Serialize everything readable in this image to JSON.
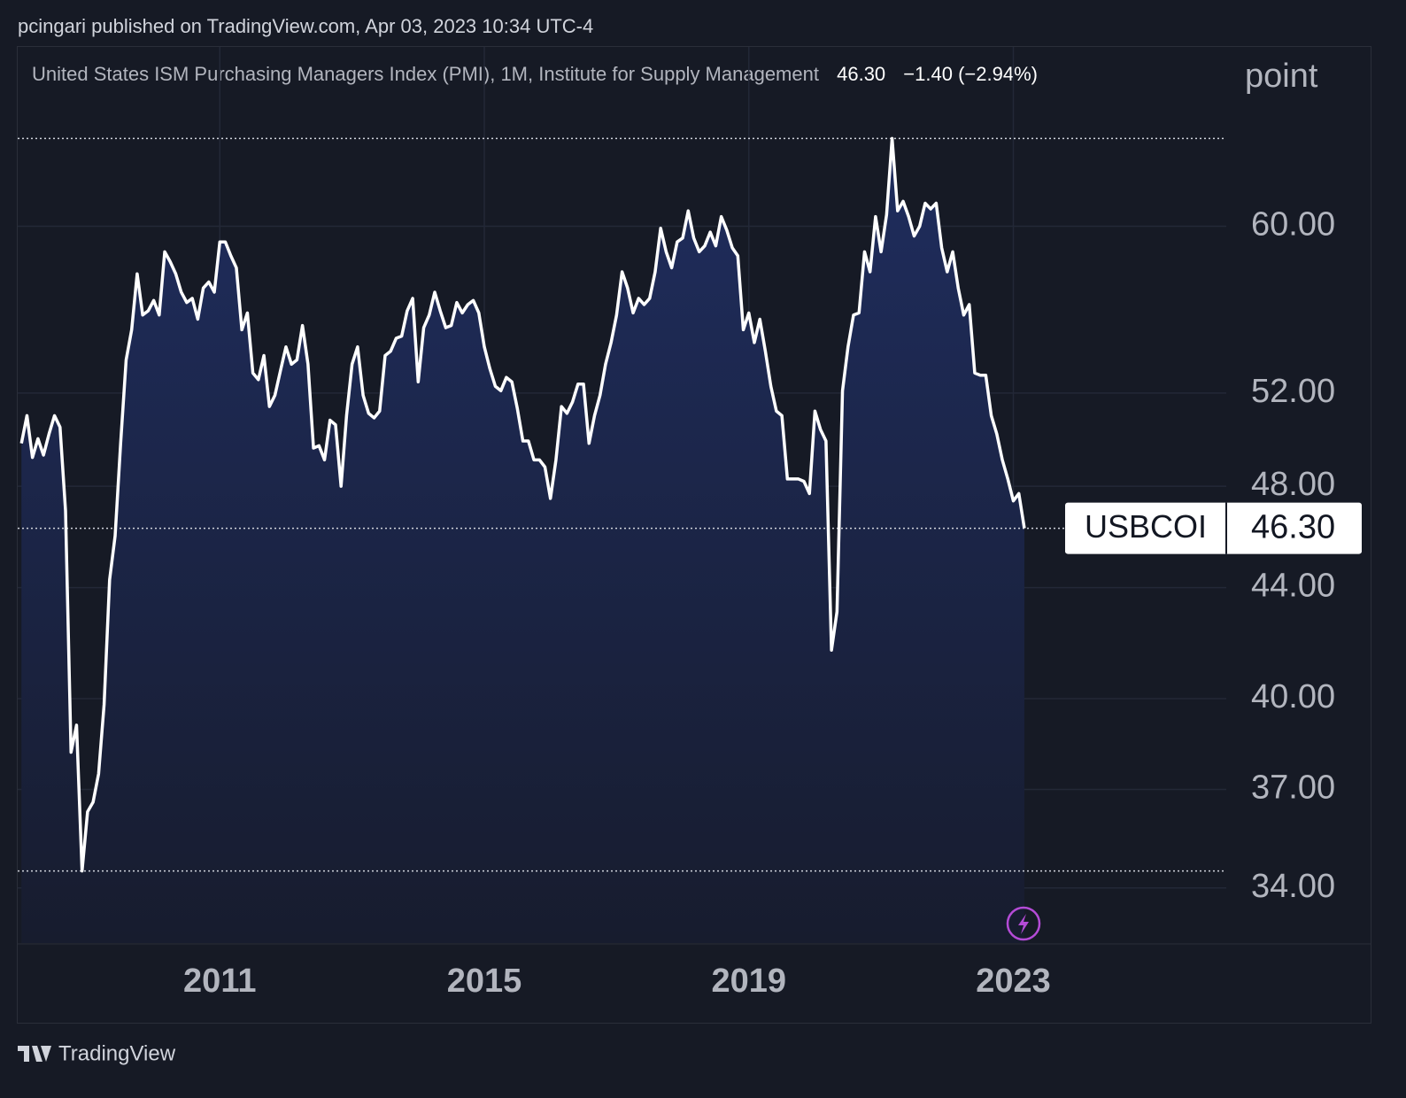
{
  "header": {
    "publisher": "pcingari published on TradingView.com, Apr 03, 2023 10:34 UTC-4",
    "brand": "TradingView"
  },
  "chart_data": {
    "type": "line",
    "title": "United States ISM Purchasing Managers Index (PMI), 1M, Institute for Supply Management",
    "last": "46.30",
    "change": "−1.40 (−2.94%)",
    "symbol": "USBCOI",
    "unit": "point",
    "log_scale": true,
    "grid": true,
    "x": [
      "2008-01",
      "2008-02",
      "2008-03",
      "2008-04",
      "2008-05",
      "2008-06",
      "2008-07",
      "2008-08",
      "2008-09",
      "2008-10",
      "2008-11",
      "2008-12",
      "2009-01",
      "2009-02",
      "2009-03",
      "2009-04",
      "2009-05",
      "2009-06",
      "2009-07",
      "2009-08",
      "2009-09",
      "2009-10",
      "2009-11",
      "2009-12",
      "2010-01",
      "2010-02",
      "2010-03",
      "2010-04",
      "2010-05",
      "2010-06",
      "2010-07",
      "2010-08",
      "2010-09",
      "2010-10",
      "2010-11",
      "2010-12",
      "2011-01",
      "2011-02",
      "2011-03",
      "2011-04",
      "2011-05",
      "2011-06",
      "2011-07",
      "2011-08",
      "2011-09",
      "2011-10",
      "2011-11",
      "2011-12",
      "2012-01",
      "2012-02",
      "2012-03",
      "2012-04",
      "2012-05",
      "2012-06",
      "2012-07",
      "2012-08",
      "2012-09",
      "2012-10",
      "2012-11",
      "2012-12",
      "2013-01",
      "2013-02",
      "2013-03",
      "2013-04",
      "2013-05",
      "2013-06",
      "2013-07",
      "2013-08",
      "2013-09",
      "2013-10",
      "2013-11",
      "2013-12",
      "2014-01",
      "2014-02",
      "2014-03",
      "2014-04",
      "2014-05",
      "2014-06",
      "2014-07",
      "2014-08",
      "2014-09",
      "2014-10",
      "2014-11",
      "2014-12",
      "2015-01",
      "2015-02",
      "2015-03",
      "2015-04",
      "2015-05",
      "2015-06",
      "2015-07",
      "2015-08",
      "2015-09",
      "2015-10",
      "2015-11",
      "2015-12",
      "2016-01",
      "2016-02",
      "2016-03",
      "2016-04",
      "2016-05",
      "2016-06",
      "2016-07",
      "2016-08",
      "2016-09",
      "2016-10",
      "2016-11",
      "2016-12",
      "2017-01",
      "2017-02",
      "2017-03",
      "2017-04",
      "2017-05",
      "2017-06",
      "2017-07",
      "2017-08",
      "2017-09",
      "2017-10",
      "2017-11",
      "2017-12",
      "2018-01",
      "2018-02",
      "2018-03",
      "2018-04",
      "2018-05",
      "2018-06",
      "2018-07",
      "2018-08",
      "2018-09",
      "2018-10",
      "2018-11",
      "2018-12",
      "2019-01",
      "2019-02",
      "2019-03",
      "2019-04",
      "2019-05",
      "2019-06",
      "2019-07",
      "2019-08",
      "2019-09",
      "2019-10",
      "2019-11",
      "2019-12",
      "2020-01",
      "2020-02",
      "2020-03",
      "2020-04",
      "2020-05",
      "2020-06",
      "2020-07",
      "2020-08",
      "2020-09",
      "2020-10",
      "2020-11",
      "2020-12",
      "2021-01",
      "2021-02",
      "2021-03",
      "2021-04",
      "2021-05",
      "2021-06",
      "2021-07",
      "2021-08",
      "2021-09",
      "2021-10",
      "2021-11",
      "2021-12",
      "2022-01",
      "2022-02",
      "2022-03",
      "2022-04",
      "2022-05",
      "2022-06",
      "2022-07",
      "2022-08",
      "2022-09",
      "2022-10",
      "2022-11",
      "2022-12",
      "2023-01",
      "2023-02",
      "2023-03"
    ],
    "series": [
      {
        "name": "USBCOI",
        "color": "#ffffff",
        "values": [
          49.8,
          51.0,
          49.2,
          50.0,
          49.3,
          50.2,
          51.0,
          50.5,
          47.0,
          38.2,
          39.1,
          34.5,
          36.3,
          36.6,
          37.5,
          39.8,
          44.3,
          46.0,
          49.8,
          53.5,
          54.9,
          57.6,
          55.6,
          55.8,
          56.3,
          55.6,
          58.7,
          58.2,
          57.6,
          56.7,
          56.2,
          56.4,
          55.4,
          56.9,
          57.2,
          56.7,
          59.2,
          59.2,
          58.5,
          57.9,
          54.9,
          55.7,
          52.9,
          52.6,
          53.7,
          51.4,
          51.9,
          53.0,
          54.1,
          53.3,
          53.5,
          55.1,
          53.3,
          49.6,
          49.7,
          49.1,
          50.8,
          50.6,
          48.0,
          51.0,
          53.3,
          54.1,
          51.9,
          51.1,
          50.9,
          51.2,
          53.7,
          53.9,
          54.5,
          54.6,
          55.8,
          56.4,
          52.5,
          55.0,
          55.6,
          56.7,
          55.8,
          55.0,
          55.1,
          56.2,
          55.7,
          56.1,
          56.3,
          55.7,
          54.1,
          53.1,
          52.3,
          52.1,
          52.7,
          52.5,
          51.3,
          49.9,
          49.9,
          49.1,
          49.1,
          48.8,
          47.5,
          49.1,
          51.4,
          51.1,
          51.6,
          52.4,
          52.4,
          49.8,
          51.0,
          51.9,
          53.3,
          54.3,
          55.6,
          57.7,
          56.9,
          55.7,
          56.4,
          56.1,
          56.4,
          57.7,
          59.9,
          58.7,
          57.9,
          59.2,
          59.4,
          60.8,
          59.4,
          58.7,
          59.0,
          59.7,
          59.0,
          60.5,
          59.8,
          58.9,
          58.5,
          54.9,
          55.7,
          54.3,
          55.4,
          53.9,
          52.3,
          51.2,
          51.0,
          48.3,
          48.3,
          48.3,
          48.2,
          47.7,
          51.2,
          50.4,
          49.9,
          41.7,
          43.1,
          52.1,
          54.1,
          55.6,
          55.7,
          58.7,
          57.7,
          60.5,
          58.7,
          60.6,
          64.7,
          60.8,
          61.3,
          60.5,
          59.5,
          60.0,
          61.2,
          60.9,
          61.2,
          58.9,
          57.7,
          58.7,
          56.9,
          55.6,
          56.1,
          52.9,
          52.8,
          52.8,
          51.0,
          50.2,
          49.1,
          48.3,
          47.4,
          47.7,
          46.3
        ]
      }
    ],
    "xlim": [
      "2007-12",
      "2026-03"
    ],
    "xticks": [
      {
        "value": "2011-01",
        "label": "2011"
      },
      {
        "value": "2015-01",
        "label": "2015"
      },
      {
        "value": "2019-01",
        "label": "2019"
      },
      {
        "value": "2023-01",
        "label": "2023"
      }
    ],
    "ylim": [
      32.43,
      70.04
    ],
    "yticks": [
      {
        "value": 34,
        "label": "34.00"
      },
      {
        "value": 37,
        "label": "37.00"
      },
      {
        "value": 40,
        "label": "40.00"
      },
      {
        "value": 44,
        "label": "44.00"
      },
      {
        "value": 48,
        "label": "48.00"
      },
      {
        "value": 52,
        "label": "52.00"
      },
      {
        "value": 60,
        "label": "60.00"
      }
    ]
  }
}
